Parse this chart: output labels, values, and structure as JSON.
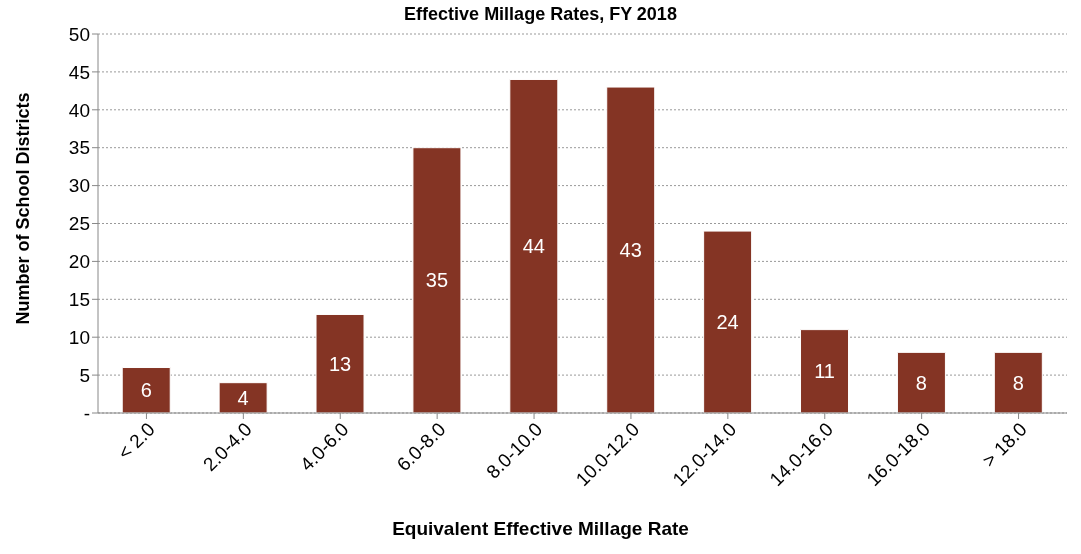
{
  "chart_data": {
    "type": "bar",
    "title": "Effective Millage Rates, FY 2018",
    "xlabel": "Equivalent Effective Millage Rate",
    "ylabel": "Number of School Districts",
    "categories": [
      "< 2.0",
      "2.0-4.0",
      "4.0-6.0",
      "6.0-8.0",
      "8.0-10.0",
      "10.0-12.0",
      "12.0-14.0",
      "14.0-16.0",
      "16.0-18.0",
      "> 18.0"
    ],
    "values": [
      6,
      4,
      13,
      35,
      44,
      43,
      24,
      11,
      8,
      8
    ],
    "color": "#843424",
    "ylim": [
      0,
      50
    ],
    "yticks": [
      {
        "value": 0,
        "label": "-"
      },
      5,
      10,
      15,
      20,
      25,
      30,
      35,
      40,
      45,
      50
    ],
    "grid": "y",
    "data_labels": true
  }
}
